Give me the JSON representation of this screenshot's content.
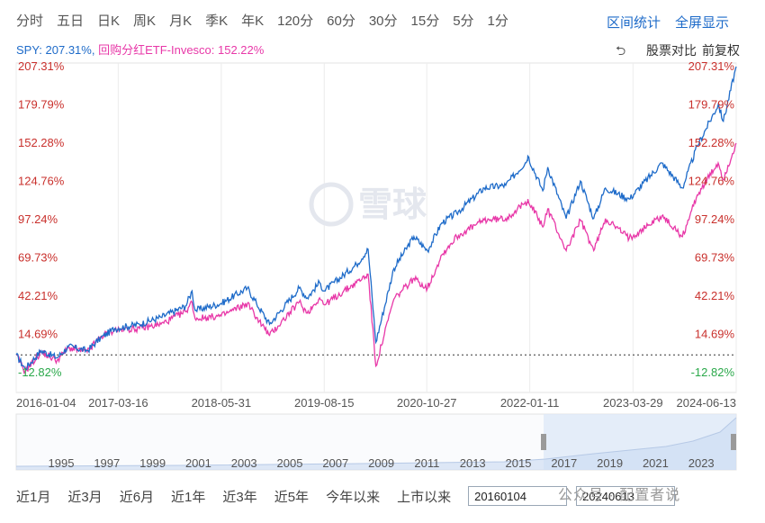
{
  "period_tabs": [
    "分时",
    "五日",
    "日K",
    "周K",
    "月K",
    "季K",
    "年K",
    "120分",
    "60分",
    "30分",
    "15分",
    "5分",
    "1分"
  ],
  "top_actions": [
    "区间统计",
    "全屏显示"
  ],
  "legend": {
    "spy_label": "SPY: 207.31%",
    "separator": ",",
    "div_label": "回购分红ETF-Invesco: 152.22%"
  },
  "right_controls": {
    "compare_label": "股票对比",
    "adjust_label": "前复权"
  },
  "watermark": "雪球",
  "bottom": {
    "range_buttons": [
      "近1月",
      "近3月",
      "近6月",
      "近1年",
      "近3年",
      "近5年",
      "今年以来",
      "上市以来"
    ],
    "start_date": "20160104",
    "end_date": "20240613",
    "caption": "公众号 · 配置者说"
  },
  "colors": {
    "spy": "#1e6bc9",
    "div": "#e838a8",
    "neg": "#2aa84a",
    "pos": "#c9302c",
    "nav_fill": "#dce8f7"
  },
  "chart_data": {
    "type": "line",
    "ylabel_unit": "%",
    "y_ticks": [
      207.31,
      179.79,
      152.28,
      124.76,
      97.24,
      69.73,
      42.21,
      14.69,
      -12.82
    ],
    "y_tick_labels": [
      "207.31%",
      "179.79%",
      "152.28%",
      "124.76%",
      "97.24%",
      "69.73%",
      "42.21%",
      "14.69%",
      "-12.82%"
    ],
    "ylim": [
      -12.82,
      207.31
    ],
    "x_tick_labels": [
      "2016-01-04",
      "2017-03-16",
      "2018-05-31",
      "2019-08-15",
      "2020-10-27",
      "2022-01-11",
      "2023-03-29",
      "2024-06-13"
    ],
    "x_range": [
      "2016-01-04",
      "2024-06-13"
    ],
    "navigator_years": [
      "1995",
      "1997",
      "1999",
      "2001",
      "2003",
      "2005",
      "2007",
      "2009",
      "2011",
      "2013",
      "2015",
      "2017",
      "2019",
      "2021",
      "2023"
    ],
    "series": [
      {
        "name": "SPY",
        "points": [
          [
            "2016-01-04",
            0
          ],
          [
            "2016-02-11",
            -10
          ],
          [
            "2016-04-20",
            3
          ],
          [
            "2016-06-27",
            -2
          ],
          [
            "2016-08-15",
            6
          ],
          [
            "2016-11-03",
            3
          ],
          [
            "2016-12-30",
            12
          ],
          [
            "2017-03-01",
            19
          ],
          [
            "2017-06-15",
            22
          ],
          [
            "2017-09-15",
            27
          ],
          [
            "2017-12-29",
            35
          ],
          [
            "2018-01-26",
            46
          ],
          [
            "2018-02-08",
            32
          ],
          [
            "2018-05-31",
            37
          ],
          [
            "2018-09-20",
            48
          ],
          [
            "2018-10-29",
            37
          ],
          [
            "2018-12-24",
            22
          ],
          [
            "2019-04-30",
            48
          ],
          [
            "2019-06-03",
            41
          ],
          [
            "2019-07-26",
            52
          ],
          [
            "2019-08-15",
            46
          ],
          [
            "2019-12-31",
            65
          ],
          [
            "2020-02-19",
            76
          ],
          [
            "2020-03-23",
            9
          ],
          [
            "2020-06-08",
            62
          ],
          [
            "2020-09-02",
            85
          ],
          [
            "2020-10-30",
            75
          ],
          [
            "2020-12-31",
            95
          ],
          [
            "2021-03-04",
            102
          ],
          [
            "2021-06-30",
            120
          ],
          [
            "2021-09-30",
            122
          ],
          [
            "2021-12-31",
            140
          ],
          [
            "2022-01-03",
            143
          ],
          [
            "2022-03-08",
            118
          ],
          [
            "2022-03-29",
            135
          ],
          [
            "2022-06-16",
            98
          ],
          [
            "2022-08-16",
            125
          ],
          [
            "2022-10-12",
            98
          ],
          [
            "2022-12-01",
            120
          ],
          [
            "2023-03-13",
            112
          ],
          [
            "2023-07-31",
            138
          ],
          [
            "2023-10-27",
            120
          ],
          [
            "2023-12-29",
            150
          ],
          [
            "2024-03-28",
            180
          ],
          [
            "2024-04-19",
            168
          ],
          [
            "2024-06-13",
            207.31
          ]
        ]
      },
      {
        "name": "回购分红ETF-Invesco",
        "points": [
          [
            "2016-01-04",
            0
          ],
          [
            "2016-02-11",
            -12
          ],
          [
            "2016-04-20",
            2
          ],
          [
            "2016-06-27",
            -4
          ],
          [
            "2016-08-15",
            5
          ],
          [
            "2016-11-03",
            2
          ],
          [
            "2016-12-30",
            13
          ],
          [
            "2017-03-01",
            18
          ],
          [
            "2017-06-15",
            19
          ],
          [
            "2017-09-15",
            22
          ],
          [
            "2017-12-29",
            31
          ],
          [
            "2018-01-26",
            38
          ],
          [
            "2018-02-08",
            26
          ],
          [
            "2018-05-31",
            28
          ],
          [
            "2018-09-20",
            37
          ],
          [
            "2018-10-29",
            27
          ],
          [
            "2018-12-24",
            14
          ],
          [
            "2019-04-30",
            38
          ],
          [
            "2019-06-03",
            30
          ],
          [
            "2019-07-26",
            41
          ],
          [
            "2019-08-15",
            36
          ],
          [
            "2019-12-31",
            52
          ],
          [
            "2020-02-19",
            58
          ],
          [
            "2020-03-23",
            -8
          ],
          [
            "2020-06-08",
            40
          ],
          [
            "2020-09-02",
            55
          ],
          [
            "2020-10-30",
            48
          ],
          [
            "2020-12-31",
            72
          ],
          [
            "2021-03-04",
            85
          ],
          [
            "2021-06-30",
            97
          ],
          [
            "2021-09-30",
            98
          ],
          [
            "2021-12-31",
            110
          ],
          [
            "2022-01-03",
            112
          ],
          [
            "2022-03-08",
            92
          ],
          [
            "2022-03-29",
            105
          ],
          [
            "2022-06-16",
            75
          ],
          [
            "2022-08-16",
            97
          ],
          [
            "2022-10-12",
            75
          ],
          [
            "2022-12-01",
            98
          ],
          [
            "2023-03-13",
            84
          ],
          [
            "2023-07-31",
            100
          ],
          [
            "2023-10-27",
            85
          ],
          [
            "2023-12-29",
            115
          ],
          [
            "2024-03-28",
            138
          ],
          [
            "2024-04-19",
            126
          ],
          [
            "2024-06-13",
            152.22
          ]
        ]
      }
    ],
    "baseline": 0,
    "grid": true
  }
}
